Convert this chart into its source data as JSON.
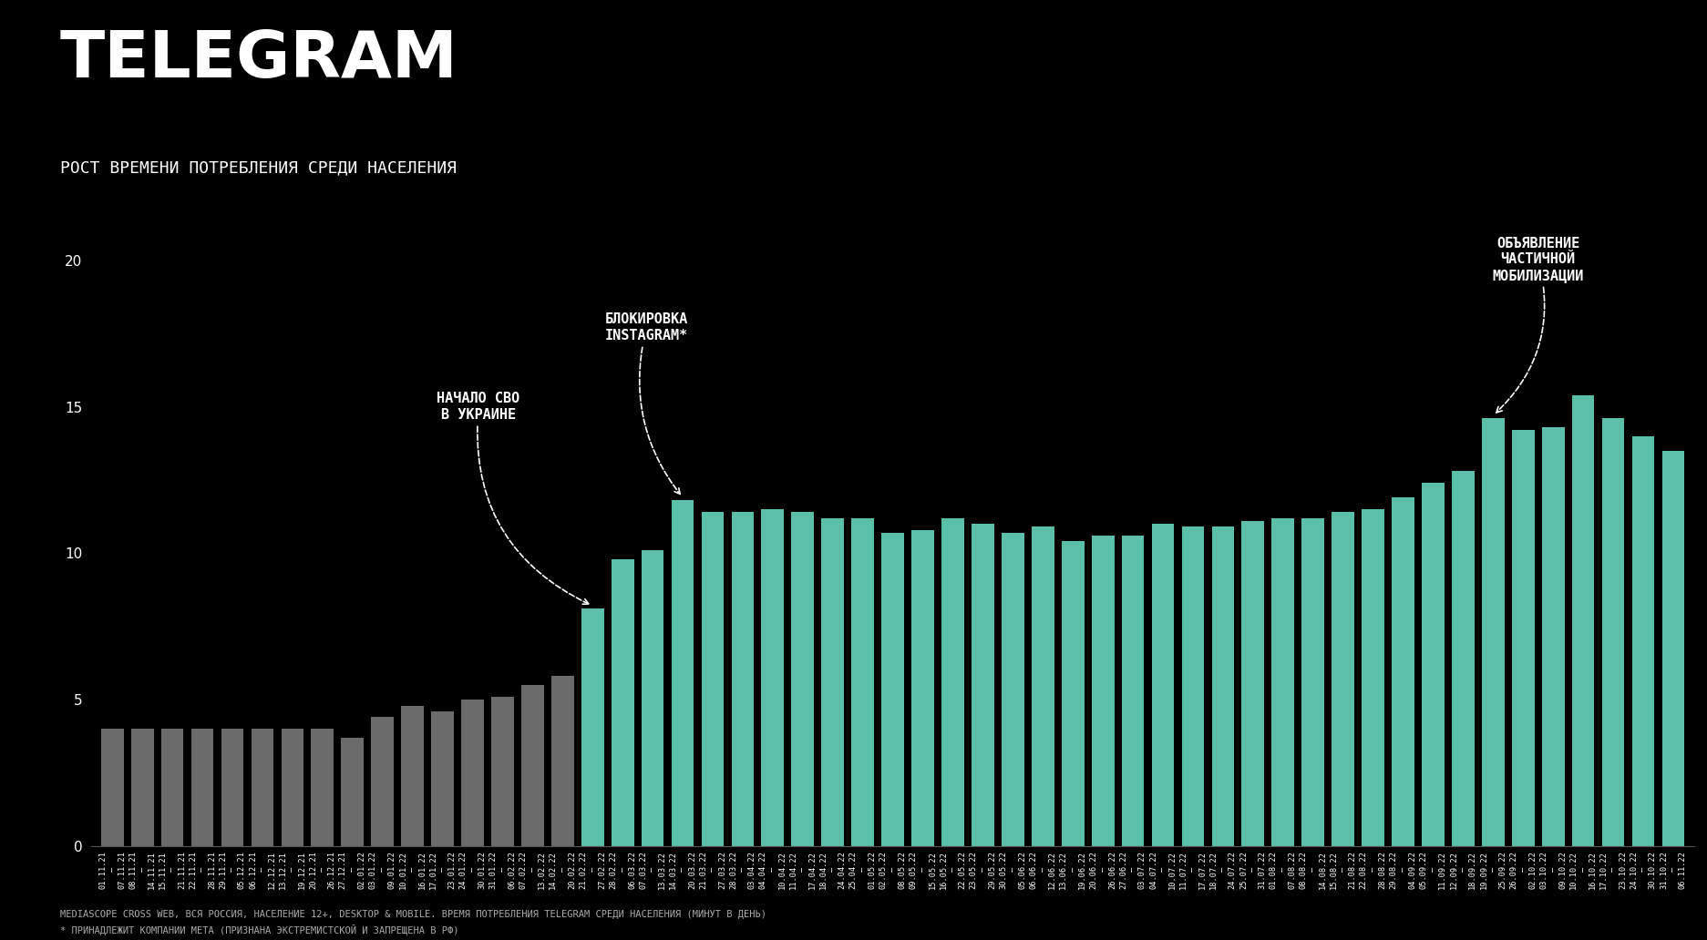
{
  "title": "TELEGRAM",
  "subtitle": "РОСТ ВРЕМЕНИ ПОТРЕБЛЕНИЯ СРЕДИ НАСЕЛЕНИЯ",
  "background_color": "#000000",
  "text_color": "#ffffff",
  "bar_color_gray": "#6b6b6b",
  "bar_color_teal": "#5bbfaa",
  "categories": [
    "01.11.21\n–\n07.11.21",
    "08.11.21\n–\n14.11.21",
    "15.11.21\n–\n21.11.21",
    "22.11.21\n–\n28.11.21",
    "29.11.21\n–\n05.12.21",
    "06.12.21\n–\n12.12.21",
    "13.12.21\n–\n19.12.21",
    "20.12.21\n–\n26.12.21",
    "27.12.21\n–\n02.01.22",
    "03.01.22\n–\n09.01.22",
    "10.01.22\n–\n16.01.22",
    "17.01.22\n–\n23.01.22",
    "24.01.22\n–\n30.01.22",
    "31.01.22\n–\n06.02.22",
    "07.02.22\n–\n13.02.22",
    "14.02.22\n–\n20.02.22",
    "21.02.22\n–\n27.02.22",
    "28.02.22\n–\n06.03.22",
    "07.03.22\n–\n13.03.22",
    "14.03.22\n–\n20.03.22",
    "21.03.22\n–\n27.03.22",
    "28.03.22\n–\n03.04.22",
    "04.04.22\n–\n10.04.22",
    "11.04.22\n–\n17.04.22",
    "18.04.22\n–\n24.04.22",
    "25.04.22\n–\n01.05.22",
    "02.05.22\n–\n08.05.22",
    "09.05.22\n–\n15.05.22",
    "16.05.22\n–\n22.05.22",
    "23.05.22\n–\n29.05.22",
    "30.05.22\n–\n05.06.22",
    "06.06.22\n–\n12.06.22",
    "13.06.22\n–\n19.06.22",
    "20.06.22\n–\n26.06.22",
    "27.06.22\n–\n03.07.22",
    "04.07.22\n–\n10.07.22",
    "11.07.22\n–\n17.07.22",
    "18.07.22\n–\n24.07.22",
    "25.07.22\n–\n31.07.22",
    "01.08.22\n–\n07.08.22",
    "08.08.22\n–\n14.08.22",
    "15.08.22\n–\n21.08.22",
    "22.08.22\n–\n28.08.22",
    "29.08.22\n–\n04.09.22",
    "05.09.22\n–\n11.09.22",
    "12.09.22\n–\n18.09.22",
    "19.09.22\n–\n25.09.22",
    "26.09.22\n–\n02.10.22",
    "03.10.22\n–\n09.10.22",
    "10.10.22\n–\n16.10.22",
    "17.10.22\n–\n23.10.22",
    "24.10.22\n–\n30.10.22",
    "31.10.22\n–\n06.11.22"
  ],
  "values": [
    4.0,
    4.0,
    4.0,
    4.0,
    4.0,
    4.0,
    4.0,
    4.0,
    3.7,
    4.4,
    4.8,
    4.6,
    5.0,
    5.1,
    5.5,
    5.8,
    8.1,
    9.8,
    10.1,
    11.8,
    11.4,
    11.4,
    11.5,
    11.4,
    11.2,
    11.2,
    10.7,
    10.8,
    11.2,
    11.0,
    10.7,
    10.9,
    10.4,
    10.6,
    10.6,
    11.0,
    10.9,
    10.9,
    11.1,
    11.2,
    11.2,
    11.4,
    11.5,
    11.9,
    12.4,
    12.8,
    14.6,
    14.2,
    14.3,
    15.4,
    14.6,
    14.0,
    13.5
  ],
  "colors": [
    "#6b6b6b",
    "#6b6b6b",
    "#6b6b6b",
    "#6b6b6b",
    "#6b6b6b",
    "#6b6b6b",
    "#6b6b6b",
    "#6b6b6b",
    "#6b6b6b",
    "#6b6b6b",
    "#6b6b6b",
    "#6b6b6b",
    "#6b6b6b",
    "#6b6b6b",
    "#6b6b6b",
    "#6b6b6b",
    "#5bbfaa",
    "#5bbfaa",
    "#5bbfaa",
    "#5bbfaa",
    "#5bbfaa",
    "#5bbfaa",
    "#5bbfaa",
    "#5bbfaa",
    "#5bbfaa",
    "#5bbfaa",
    "#5bbfaa",
    "#5bbfaa",
    "#5bbfaa",
    "#5bbfaa",
    "#5bbfaa",
    "#5bbfaa",
    "#5bbfaa",
    "#5bbfaa",
    "#5bbfaa",
    "#5bbfaa",
    "#5bbfaa",
    "#5bbfaa",
    "#5bbfaa",
    "#5bbfaa",
    "#5bbfaa",
    "#5bbfaa",
    "#5bbfaa",
    "#5bbfaa",
    "#5bbfaa",
    "#5bbfaa",
    "#5bbfaa",
    "#5bbfaa",
    "#5bbfaa",
    "#5bbfaa",
    "#5bbfaa",
    "#5bbfaa",
    "#5bbfaa"
  ],
  "yticks": [
    0,
    5,
    10,
    15,
    20
  ],
  "ylim": [
    0,
    22
  ],
  "footnote1": "MEDIASCOPE CROSS WEB, ВСЯ РОССИЯ, НАСЕЛЕНИЕ 12+, DESKTOP & MOBILE. ВРЕМЯ ПОТРЕБЛЕНИЯ TELEGRAM СРЕДИ НАСЕЛЕНИЯ (МИНУТ В ДЕНЬ)",
  "footnote2": "* ПРИНАДЛЕЖИТ КОМПАНИИ МЕТА (ПРИЗНАНА ЭКСТРЕМИСТСКОЙ И ЗАПРЕЩЕНА В РФ)",
  "annotation1_text": "НАЧАЛО СВО\nВ УКРАИНЕ",
  "annotation1_bar_idx": 16,
  "annotation2_text": "БЛОКИРОВКА\nINSTAGRAM*",
  "annotation2_bar_idx": 19,
  "annotation3_text": "ОБЪЯВЛЕНИЕ\nЧАСТИЧНОЙ\nМОБИЛИЗАЦИИ",
  "annotation3_bar_idx": 46
}
